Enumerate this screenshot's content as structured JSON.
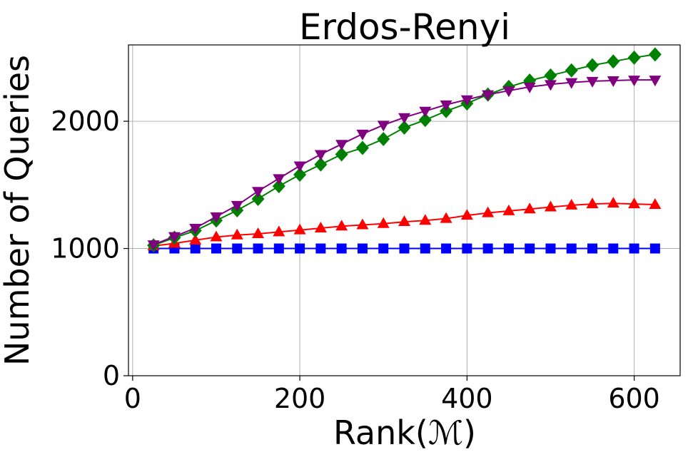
{
  "chart_data": {
    "type": "line",
    "title": "Erdos-Renyi",
    "xlabel": "Rank(ℳ)",
    "ylabel": "Number of Queries",
    "xlim": [
      -5,
      655
    ],
    "ylim": [
      0,
      2600
    ],
    "xticks": [
      0,
      200,
      400,
      600
    ],
    "yticks": [
      0,
      1000,
      2000
    ],
    "grid": true,
    "x": [
      25,
      50,
      75,
      100,
      125,
      150,
      175,
      200,
      225,
      250,
      275,
      300,
      325,
      350,
      375,
      400,
      425,
      450,
      475,
      500,
      525,
      550,
      575,
      600,
      625
    ],
    "series": [
      {
        "color": "#0000ff",
        "marker": "square",
        "values": [
          1000,
          1000,
          1000,
          1000,
          1000,
          1000,
          1000,
          1000,
          1000,
          1000,
          1000,
          1000,
          1000,
          1000,
          1000,
          1000,
          1000,
          1000,
          1000,
          1000,
          1000,
          1000,
          1000,
          1000,
          1000
        ]
      },
      {
        "color": "#ff0000",
        "marker": "triangle-up",
        "values": [
          1020,
          1040,
          1065,
          1090,
          1105,
          1115,
          1130,
          1145,
          1160,
          1175,
          1185,
          1195,
          1210,
          1220,
          1235,
          1260,
          1280,
          1295,
          1310,
          1325,
          1340,
          1350,
          1355,
          1350,
          1345
        ]
      },
      {
        "color": "#008000",
        "marker": "diamond",
        "values": [
          1025,
          1085,
          1140,
          1220,
          1300,
          1390,
          1490,
          1580,
          1660,
          1740,
          1790,
          1860,
          1950,
          2010,
          2080,
          2140,
          2210,
          2270,
          2320,
          2360,
          2400,
          2440,
          2470,
          2500,
          2525
        ]
      },
      {
        "color": "#800080",
        "marker": "triangle-down",
        "values": [
          1030,
          1095,
          1160,
          1250,
          1340,
          1450,
          1550,
          1650,
          1740,
          1820,
          1900,
          1970,
          2030,
          2080,
          2130,
          2170,
          2210,
          2240,
          2270,
          2290,
          2305,
          2315,
          2320,
          2325,
          2325
        ]
      }
    ]
  }
}
